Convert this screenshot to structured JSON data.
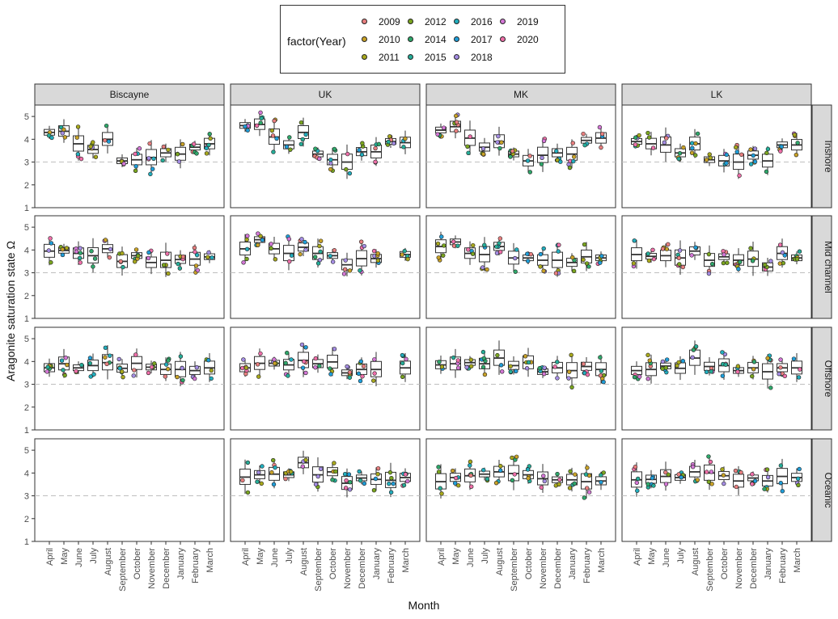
{
  "chart_data": {
    "type": "box",
    "legend": {
      "title": "factor(Year)",
      "placement": "top",
      "entries": [
        {
          "year": "2009",
          "color": "#e87f7f"
        },
        {
          "year": "2010",
          "color": "#c9a227"
        },
        {
          "year": "2011",
          "color": "#a8a81c"
        },
        {
          "year": "2012",
          "color": "#7aa51f"
        },
        {
          "year": "2014",
          "color": "#2fa86b"
        },
        {
          "year": "2015",
          "color": "#25ad98"
        },
        {
          "year": "2016",
          "color": "#22aebe"
        },
        {
          "year": "2017",
          "color": "#1f9ed9"
        },
        {
          "year": "2018",
          "color": "#a58de4"
        },
        {
          "year": "2019",
          "color": "#d477d6"
        },
        {
          "year": "2020",
          "color": "#ef6fa9"
        }
      ]
    },
    "xlabel": "Month",
    "ylabel": "Aragonite saturation state  Ω",
    "ylim": [
      1,
      5.5
    ],
    "yticks": [
      1,
      2,
      3,
      4,
      5
    ],
    "reference_line": 3,
    "grid": false,
    "columns": [
      "Biscayne",
      "UK",
      "MK",
      "LK"
    ],
    "rows": [
      "Inshore",
      "Mid channel",
      "Offshore",
      "Oceanic"
    ],
    "months": [
      "April",
      "May",
      "June",
      "July",
      "August",
      "September",
      "October",
      "November",
      "December",
      "January",
      "February",
      "March"
    ],
    "panels": [
      [
        [
          4.3,
          4.35,
          3.8,
          3.55,
          4.0,
          3.05,
          3.1,
          3.2,
          3.4,
          3.35,
          3.65,
          3.8
        ],
        [
          4.6,
          4.65,
          4.1,
          3.75,
          4.3,
          3.35,
          3.1,
          3.0,
          3.45,
          3.45,
          3.9,
          3.85
        ],
        [
          4.4,
          4.55,
          4.05,
          3.65,
          3.9,
          3.35,
          3.05,
          3.3,
          3.4,
          3.35,
          3.95,
          4.05
        ],
        [
          3.9,
          3.8,
          3.75,
          3.4,
          3.8,
          3.1,
          3.05,
          3.0,
          3.3,
          3.05,
          3.75,
          3.75
        ]
      ],
      [
        [
          3.95,
          3.98,
          3.85,
          3.75,
          4.05,
          3.5,
          3.75,
          3.45,
          3.55,
          3.58,
          3.6,
          3.7
        ],
        [
          4.05,
          4.45,
          4.05,
          3.85,
          4.12,
          3.85,
          3.75,
          3.35,
          3.62,
          3.62,
          null,
          3.8
        ],
        [
          4.15,
          4.35,
          3.85,
          3.8,
          4.15,
          3.65,
          3.65,
          3.55,
          3.55,
          3.45,
          3.7,
          3.65
        ],
        [
          3.8,
          3.72,
          3.75,
          3.65,
          3.95,
          3.55,
          3.7,
          3.55,
          3.6,
          3.25,
          3.85,
          3.65
        ]
      ],
      [
        [
          3.72,
          3.9,
          3.72,
          3.82,
          3.95,
          3.7,
          3.92,
          3.75,
          3.65,
          3.65,
          3.6,
          3.72
        ],
        [
          3.72,
          3.92,
          3.92,
          3.85,
          4.05,
          3.9,
          3.98,
          3.5,
          3.65,
          3.65,
          null,
          3.72
        ],
        [
          3.85,
          3.9,
          3.95,
          3.9,
          4.15,
          3.82,
          3.95,
          3.55,
          3.72,
          3.6,
          3.78,
          3.65
        ],
        [
          3.6,
          3.65,
          3.8,
          3.7,
          4.15,
          3.78,
          3.82,
          3.6,
          3.72,
          3.55,
          3.72,
          3.72
        ]
      ],
      [
        [
          null,
          null,
          null,
          null,
          null,
          null,
          null,
          null,
          null,
          null,
          null,
          null
        ],
        [
          3.82,
          3.92,
          3.95,
          3.92,
          4.45,
          3.92,
          4.05,
          3.55,
          3.78,
          3.72,
          3.68,
          3.8
        ],
        [
          3.62,
          3.8,
          3.88,
          3.95,
          4.05,
          3.98,
          3.92,
          3.75,
          3.7,
          3.7,
          3.62,
          3.65
        ],
        [
          3.7,
          3.72,
          3.85,
          3.8,
          4.05,
          4.0,
          3.88,
          3.65,
          3.78,
          3.65,
          3.85,
          3.8
        ]
      ]
    ]
  }
}
